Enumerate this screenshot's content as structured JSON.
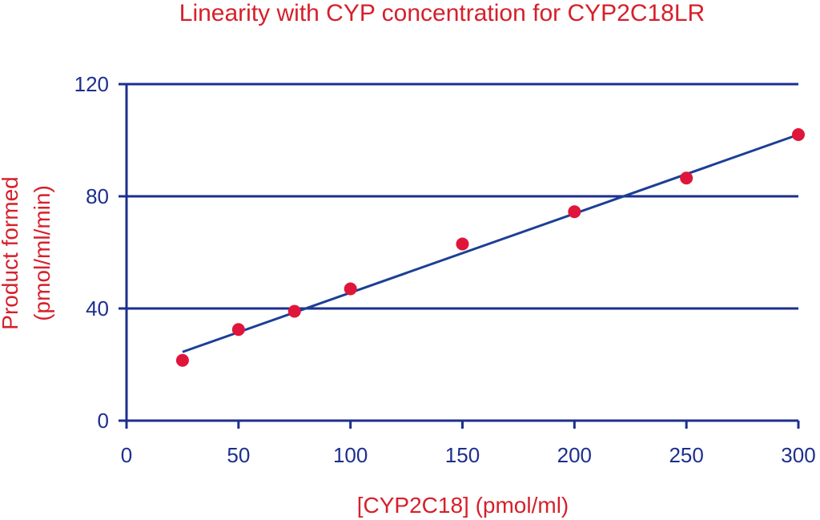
{
  "chart_data": {
    "type": "scatter",
    "title": "Linearity with CYP concentration for CYP2C18LR",
    "xlabel": "[CYP2C18] (pmol/ml)",
    "ylabel_line1": "Product formed",
    "ylabel_line2": "(pmol/ml/min)",
    "xlim": [
      0,
      300
    ],
    "ylim": [
      0,
      120
    ],
    "x_ticks": [
      0,
      50,
      100,
      150,
      200,
      250,
      300
    ],
    "y_ticks": [
      0,
      40,
      80,
      120
    ],
    "x_tick_labels": [
      "0",
      "50",
      "100",
      "150",
      "200",
      "250",
      "300"
    ],
    "y_tick_labels": [
      "0",
      "40",
      "80",
      "120"
    ],
    "grid": "horizontal",
    "points": [
      {
        "x": 25,
        "y": 21.5
      },
      {
        "x": 50,
        "y": 32.5
      },
      {
        "x": 75,
        "y": 39
      },
      {
        "x": 100,
        "y": 47
      },
      {
        "x": 150,
        "y": 63
      },
      {
        "x": 200,
        "y": 74.5
      },
      {
        "x": 250,
        "y": 86.5
      },
      {
        "x": 300,
        "y": 102
      }
    ],
    "trendline": {
      "x": [
        25,
        300
      ],
      "y": [
        24.5,
        102
      ]
    },
    "colors": {
      "axis": "#1c2f8f",
      "trendline": "#1c3f96",
      "point": "#e0153a",
      "text": "#d6202b"
    }
  }
}
